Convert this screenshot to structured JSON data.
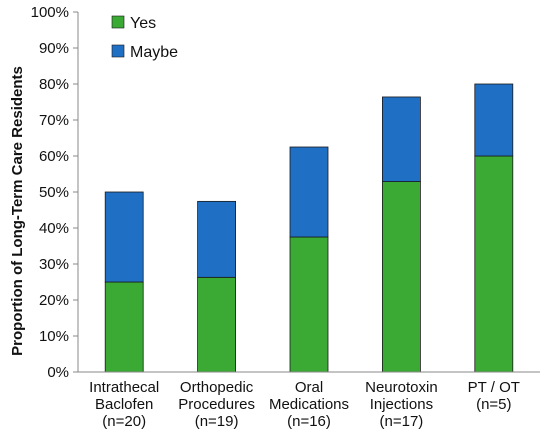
{
  "chart_data": {
    "type": "bar",
    "stacked": true,
    "title": "",
    "xlabel": "",
    "ylabel": "Proportion of Long-Term Care Residents",
    "ylim": [
      0,
      100
    ],
    "yticks": [
      "0%",
      "10%",
      "20%",
      "30%",
      "40%",
      "50%",
      "60%",
      "70%",
      "80%",
      "90%",
      "100%"
    ],
    "grid": false,
    "legend_position": "top-left",
    "categories": [
      [
        "Intrathecal",
        "Baclofen",
        "(n=20)"
      ],
      [
        "Orthopedic",
        "Procedures",
        "(n=19)"
      ],
      [
        "Oral",
        "Medications",
        "(n=16)"
      ],
      [
        "Neurotoxin",
        "Injections",
        "(n=17)"
      ],
      [
        "PT / OT",
        "(n=5)"
      ]
    ],
    "series": [
      {
        "name": "Yes",
        "color": "#3aaa35",
        "values": [
          25.0,
          26.3,
          37.5,
          52.9,
          60.0
        ]
      },
      {
        "name": "Maybe",
        "color": "#1f6fc5",
        "values": [
          25.0,
          21.1,
          25.0,
          23.5,
          20.0
        ]
      }
    ]
  }
}
